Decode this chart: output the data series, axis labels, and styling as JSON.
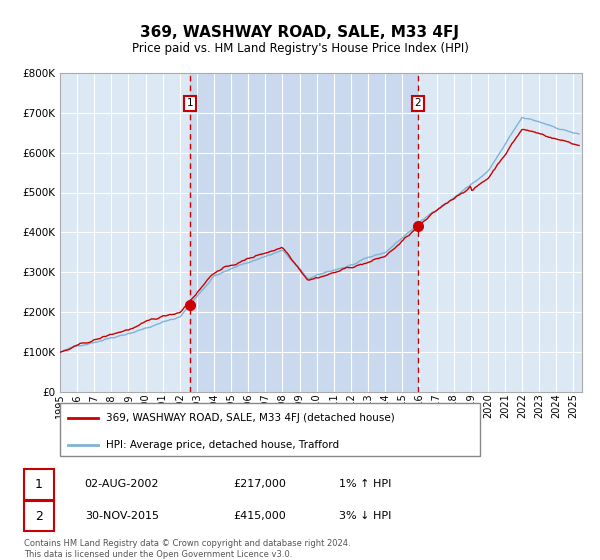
{
  "title": "369, WASHWAY ROAD, SALE, M33 4FJ",
  "subtitle": "Price paid vs. HM Land Registry's House Price Index (HPI)",
  "legend_line1": "369, WASHWAY ROAD, SALE, M33 4FJ (detached house)",
  "legend_line2": "HPI: Average price, detached house, Trafford",
  "annotation1_date": "02-AUG-2002",
  "annotation1_price": "£217,000",
  "annotation1_hpi": "1% ↑ HPI",
  "annotation2_date": "30-NOV-2015",
  "annotation2_price": "£415,000",
  "annotation2_hpi": "3% ↓ HPI",
  "footer": "Contains HM Land Registry data © Crown copyright and database right 2024.\nThis data is licensed under the Open Government Licence v3.0.",
  "plot_bg": "#dce9f5",
  "grid_color": "#ffffff",
  "red_line_color": "#cc0000",
  "blue_line_color": "#7fb3d8",
  "marker_color": "#cc0000",
  "vline_color": "#cc0000",
  "shade_color": "#c8d8ee",
  "ylim": [
    0,
    800000
  ],
  "yticks": [
    0,
    100000,
    200000,
    300000,
    400000,
    500000,
    600000,
    700000,
    800000
  ],
  "xlim_start": 1995.0,
  "xlim_end": 2025.5,
  "xtick_years": [
    1995,
    1996,
    1997,
    1998,
    1999,
    2000,
    2001,
    2002,
    2003,
    2004,
    2005,
    2006,
    2007,
    2008,
    2009,
    2010,
    2011,
    2012,
    2013,
    2014,
    2015,
    2016,
    2017,
    2018,
    2019,
    2020,
    2021,
    2022,
    2023,
    2024,
    2025
  ],
  "vline1_x": 2002.58,
  "vline2_x": 2015.92,
  "marker1_x": 2002.58,
  "marker1_y": 217000,
  "marker2_x": 2015.92,
  "marker2_y": 415000
}
